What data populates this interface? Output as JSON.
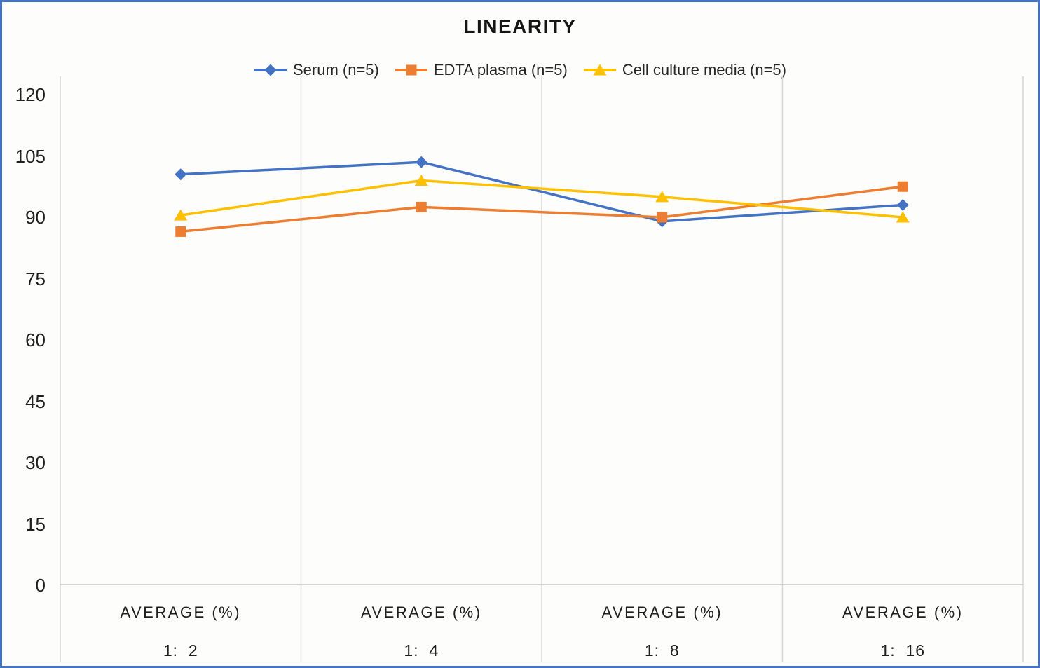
{
  "window": {
    "background": "#fdfdfb",
    "border_color": "#4472C4"
  },
  "chart_data": {
    "type": "line",
    "title": "LINEARITY",
    "legend_position": "top",
    "grid": {
      "vertical": true,
      "horizontal": false
    },
    "categories": [
      {
        "group": "AVERAGE (%)",
        "dilution": "1:  2"
      },
      {
        "group": "AVERAGE (%)",
        "dilution": "1:  4"
      },
      {
        "group": "AVERAGE (%)",
        "dilution": "1:  8"
      },
      {
        "group": "AVERAGE (%)",
        "dilution": "1:  16"
      }
    ],
    "y_axis": {
      "min": 0,
      "max": 120,
      "ticks": [
        0,
        15,
        30,
        45,
        60,
        75,
        90,
        105,
        120
      ]
    },
    "series": [
      {
        "name": "Serum (n=5)",
        "marker": "diamond",
        "color": "#4472C4",
        "values": [
          100.5,
          103.5,
          89,
          93
        ]
      },
      {
        "name": "EDTA plasma (n=5)",
        "marker": "square",
        "color": "#ED7D31",
        "values": [
          86.5,
          92.5,
          90,
          97.5
        ]
      },
      {
        "name": "Cell culture media (n=5)",
        "marker": "triangle",
        "color": "#FFC000",
        "values": [
          90.5,
          99,
          95,
          90
        ]
      }
    ],
    "colors": {
      "gridline": "#D6D6D6",
      "axis_line": "#C6C6C6",
      "text": "#1f1f1f"
    }
  }
}
